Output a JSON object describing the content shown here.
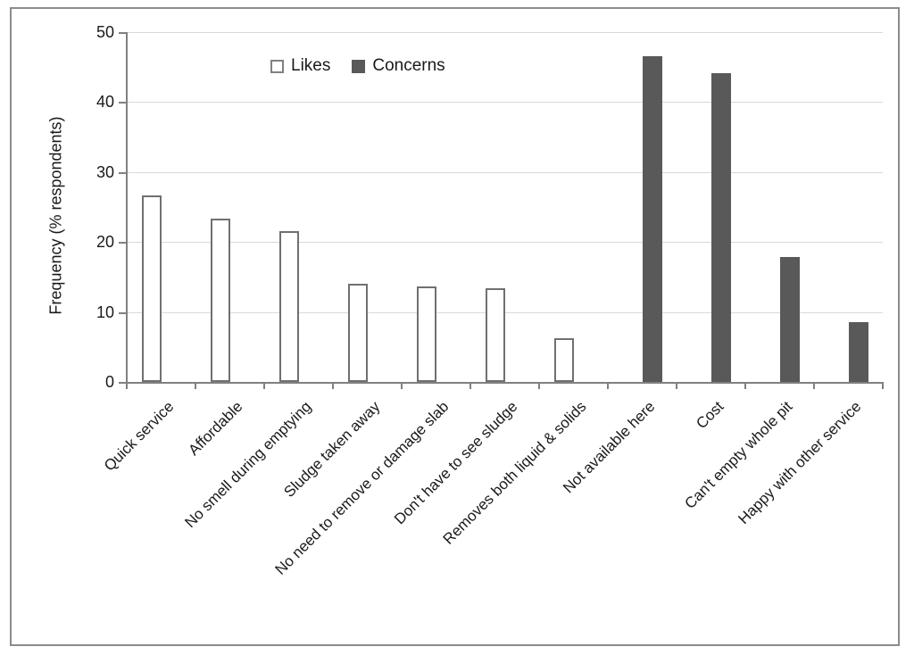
{
  "figure": {
    "background": "#FFFFFF",
    "border_color": "#8C8C8C"
  },
  "chart_data": {
    "type": "bar",
    "title": "",
    "xlabel": "",
    "ylabel": "Frequency (% respondents)",
    "ylim": [
      0,
      50
    ],
    "yticks": [
      0,
      10,
      20,
      30,
      40,
      50
    ],
    "grid": true,
    "legend_position": "top-center",
    "categories": [
      "Quick service",
      "Affordable",
      "No smell during emptying",
      "Sludge taken away",
      "No need to remove or damage slab",
      "Don't have to see sludge",
      "Removes both liquid & solids",
      "Not available here",
      "Cost",
      "Can't empty whole pit",
      "Happy with other service"
    ],
    "series": [
      {
        "name": "Likes",
        "fill": "#FFFFFF",
        "border": "#707070",
        "values": [
          26.7,
          23.3,
          21.5,
          14,
          13.6,
          13.4,
          6.2,
          null,
          null,
          null,
          null
        ]
      },
      {
        "name": "Concerns",
        "fill": "#595959",
        "border": "#595959",
        "values": [
          null,
          null,
          null,
          null,
          null,
          null,
          null,
          46.5,
          44.1,
          17.8,
          8.6
        ]
      }
    ]
  },
  "colors": {
    "gridline": "#D9D9D9",
    "axis": "#808080",
    "text": "#1A1A1A",
    "likes_fill": "#FFFFFF",
    "likes_border": "#707070",
    "concerns_fill": "#595959"
  }
}
